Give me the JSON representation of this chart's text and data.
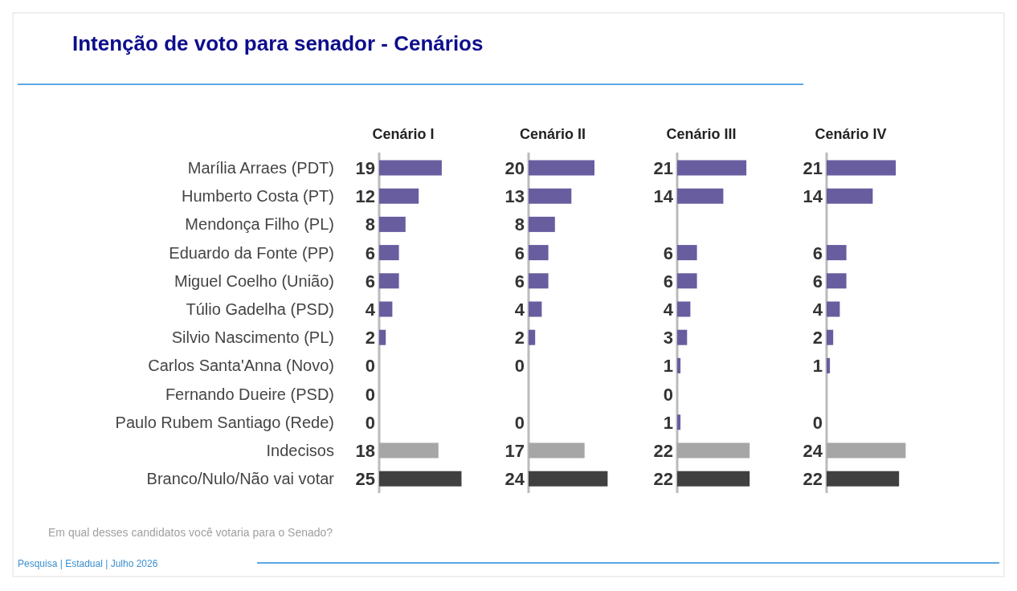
{
  "chart_data": [
    {
      "type": "bar",
      "orientation": "horizontal",
      "title": "Cenário I",
      "categories": [
        "Marília Arraes (PDT)",
        "Humberto Costa (PT)",
        "Mendonça Filho (PL)",
        "Eduardo da Fonte (PP)",
        "Miguel Coelho (União)",
        "Túlio Gadelha (PSD)",
        "Silvio Nascimento (PL)",
        "Carlos Santa'Anna (Novo)",
        "Fernando Dueire (PSD)",
        "Paulo Rubem Santiago (Rede)",
        "Indecisos",
        "Branco/Nulo/Não vai votar"
      ],
      "values": [
        19,
        12,
        8,
        6,
        6,
        4,
        2,
        0,
        0,
        0,
        18,
        25
      ],
      "colors": [
        "#675d9f",
        "#675d9f",
        "#675d9f",
        "#675d9f",
        "#675d9f",
        "#675d9f",
        "#675d9f",
        "#675d9f",
        "#675d9f",
        "#675d9f",
        "#a6a6a6",
        "#404040"
      ],
      "data_labels": true,
      "tick_labels": "y",
      "annotations": [
        "Intenção de voto para senador - Cenários",
        "Em qual desses candidatos você votaria para o Senado?",
        "Pesquisa | Estadual | Julho 2026"
      ]
    },
    {
      "type": "bar",
      "orientation": "horizontal",
      "title": "Cenário II",
      "categories": [
        null,
        null,
        null,
        null,
        null,
        null,
        null,
        null,
        null,
        null,
        null,
        null
      ],
      "values": [
        20,
        13,
        8,
        6,
        6,
        4,
        2,
        0,
        null,
        0,
        17,
        24
      ],
      "colors": [
        "#675d9f",
        "#675d9f",
        "#675d9f",
        "#675d9f",
        "#675d9f",
        "#675d9f",
        "#675d9f",
        "#675d9f",
        "#675d9f",
        "#675d9f",
        "#a6a6a6",
        "#404040"
      ],
      "data_labels": true,
      "tick_labels": false
    },
    {
      "type": "bar",
      "orientation": "horizontal",
      "title": "Cenário III",
      "categories": [
        null,
        null,
        null,
        null,
        null,
        null,
        null,
        null,
        null,
        null,
        null,
        null
      ],
      "values": [
        21,
        14,
        null,
        6,
        6,
        4,
        3,
        1,
        0,
        1,
        22,
        22
      ],
      "colors": [
        "#675d9f",
        "#675d9f",
        "#675d9f",
        "#675d9f",
        "#675d9f",
        "#675d9f",
        "#675d9f",
        "#675d9f",
        "#675d9f",
        "#675d9f",
        "#a6a6a6",
        "#404040"
      ],
      "data_labels": true,
      "tick_labels": false
    },
    {
      "type": "bar",
      "orientation": "horizontal",
      "title": "Cenário IV",
      "categories": [
        null,
        null,
        null,
        null,
        null,
        null,
        null,
        null,
        null,
        null,
        null,
        null
      ],
      "values": [
        21,
        14,
        null,
        6,
        6,
        4,
        2,
        1,
        null,
        0,
        24,
        22
      ],
      "colors": [
        "#675d9f",
        "#675d9f",
        "#675d9f",
        "#675d9f",
        "#675d9f",
        "#675d9f",
        "#675d9f",
        "#675d9f",
        "#675d9f",
        "#675d9f",
        "#a6a6a6",
        "#404040"
      ],
      "data_labels": true,
      "tick_labels": false
    }
  ]
}
